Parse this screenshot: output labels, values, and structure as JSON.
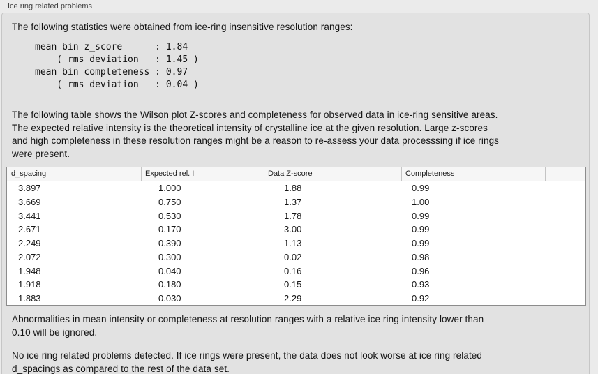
{
  "window": {
    "group_label": "Ice ring related problems"
  },
  "colors": {
    "window_bg": "#ebebeb",
    "panel_bg": "#e2e2e2",
    "panel_border": "#c6c6c6",
    "table_bg": "#ffffff",
    "table_header_bg": "#f6f6f6",
    "table_border": "#8c8c8c",
    "text": "#141414"
  },
  "panel": {
    "intro": "The following statistics were obtained from ice-ring insensitive resolution ranges:",
    "stats_block": "mean bin z_score      : 1.84\n    ( rms deviation   : 1.45 )\nmean bin completeness : 0.97\n    ( rms deviation   : 0.04 )",
    "table_description": "The following table shows the Wilson plot Z-scores and completeness for observed data in ice-ring sensitive areas.\nThe expected relative intensity is the theoretical intensity of crystalline ice at the given resolution. Large z-scores\nand high completeness in these resolution ranges might be a reason to re-assess your data processsing if ice rings\nwere present.",
    "ignore_note": "Abnormalities in mean intensity or completeness at resolution ranges with a relative ice ring intensity lower than\n0.10 will be ignored.",
    "conclusion": "No ice ring related problems detected. If ice rings were present, the data does not look worse at ice ring related\nd_spacings as compared to the rest of the data set."
  },
  "table": {
    "headers": [
      "d_spacing",
      "Expected rel. I",
      "Data Z-score",
      "Completeness",
      ""
    ],
    "rows": [
      {
        "d_spacing": "3.897",
        "expected_rel_i": "1.000",
        "data_z_score": "1.88",
        "completeness": "0.99"
      },
      {
        "d_spacing": "3.669",
        "expected_rel_i": "0.750",
        "data_z_score": "1.37",
        "completeness": "1.00"
      },
      {
        "d_spacing": "3.441",
        "expected_rel_i": "0.530",
        "data_z_score": "1.78",
        "completeness": "0.99"
      },
      {
        "d_spacing": "2.671",
        "expected_rel_i": "0.170",
        "data_z_score": "3.00",
        "completeness": "0.99"
      },
      {
        "d_spacing": "2.249",
        "expected_rel_i": "0.390",
        "data_z_score": "1.13",
        "completeness": "0.99"
      },
      {
        "d_spacing": "2.072",
        "expected_rel_i": "0.300",
        "data_z_score": "0.02",
        "completeness": "0.98"
      },
      {
        "d_spacing": "1.948",
        "expected_rel_i": "0.040",
        "data_z_score": "0.16",
        "completeness": "0.96"
      },
      {
        "d_spacing": "1.918",
        "expected_rel_i": "0.180",
        "data_z_score": "0.15",
        "completeness": "0.93"
      },
      {
        "d_spacing": "1.883",
        "expected_rel_i": "0.030",
        "data_z_score": "2.29",
        "completeness": "0.92"
      }
    ]
  }
}
